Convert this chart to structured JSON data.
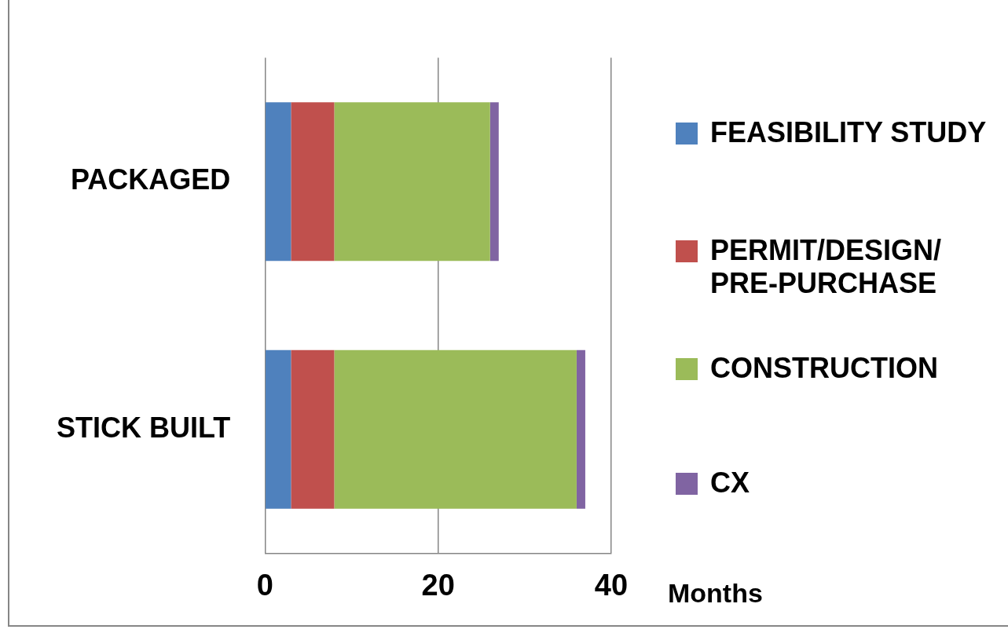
{
  "chart_data": {
    "type": "bar",
    "orientation": "horizontal",
    "stacked": true,
    "categories": [
      "PACKAGED",
      "STICK BUILT"
    ],
    "series": [
      {
        "name": "FEASIBILITY STUDY",
        "color": "#4f81bd",
        "values": [
          3,
          3
        ]
      },
      {
        "name": "PERMIT/DESIGN/ PRE-PURCHASE",
        "color": "#c0504d",
        "values": [
          5,
          5
        ]
      },
      {
        "name": "CONSTRUCTION",
        "color": "#9bbb59",
        "values": [
          18,
          28
        ]
      },
      {
        "name": "CX",
        "color": "#8064a2",
        "values": [
          1,
          1
        ]
      }
    ],
    "xlabel": "Months",
    "xlim": [
      0,
      40
    ],
    "xticks": [
      0,
      20,
      40
    ],
    "grid": "x",
    "legend": "right"
  }
}
